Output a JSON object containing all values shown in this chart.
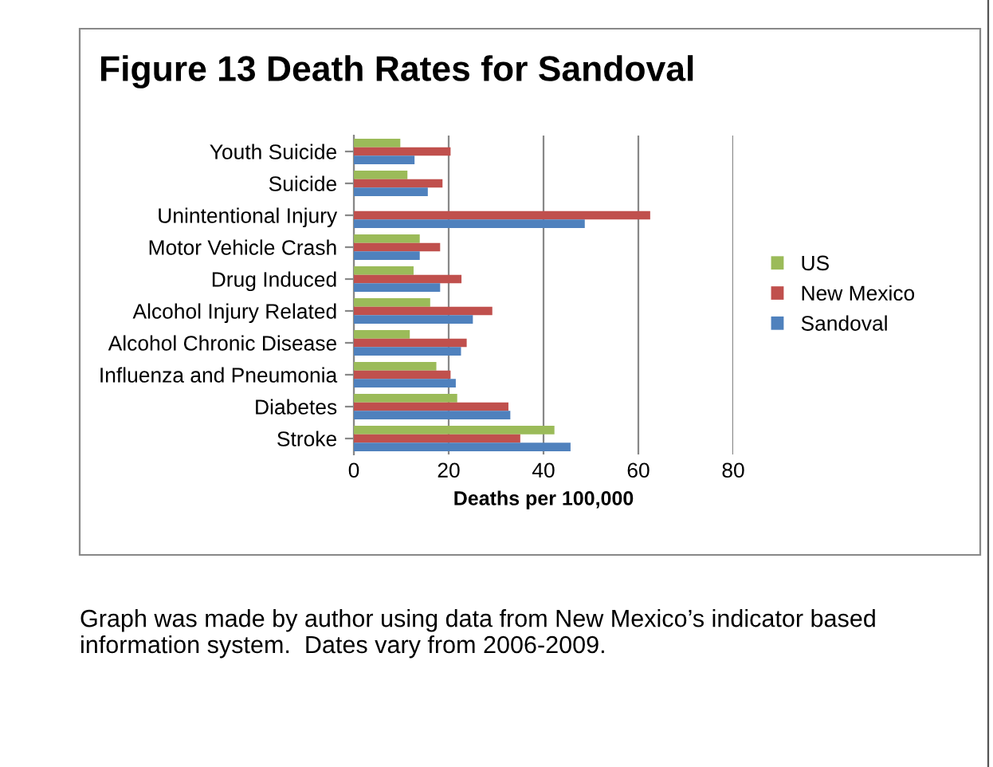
{
  "chart_data": {
    "type": "bar",
    "orientation": "horizontal",
    "title": "Figure 13 Death Rates for Sandoval",
    "xlabel": "Deaths per 100,000",
    "categories": [
      "Youth Suicide",
      "Suicide",
      "Unintentional Injury",
      "Motor Vehicle Crash",
      "Drug Induced",
      "Alcohol Injury Related",
      "Alcohol Chronic Disease",
      "Influenza and Pneumonia",
      "Diabetes",
      "Stroke"
    ],
    "series": [
      {
        "name": "US",
        "color": "#9bbb59",
        "values": [
          9.8,
          11.3,
          null,
          13.9,
          12.6,
          16.1,
          11.8,
          17.4,
          21.8,
          42.3
        ]
      },
      {
        "name": "New Mexico",
        "color": "#c0504d",
        "values": [
          20.4,
          18.7,
          62.5,
          18.2,
          22.7,
          29.2,
          23.8,
          20.4,
          32.6,
          35.1
        ]
      },
      {
        "name": "Sandoval",
        "color": "#4f81bd",
        "values": [
          12.8,
          15.6,
          48.7,
          13.9,
          18.2,
          25.1,
          22.6,
          21.5,
          33.0,
          45.7
        ]
      }
    ],
    "xlim": [
      0,
      80
    ],
    "xticks": [
      0,
      20,
      40,
      60,
      80
    ],
    "grid": "x",
    "legend": "right",
    "annotations": [
      "Graph was made by author using data from New Mexico’s indicator based information system.  Dates vary from 2006-2009."
    ]
  }
}
